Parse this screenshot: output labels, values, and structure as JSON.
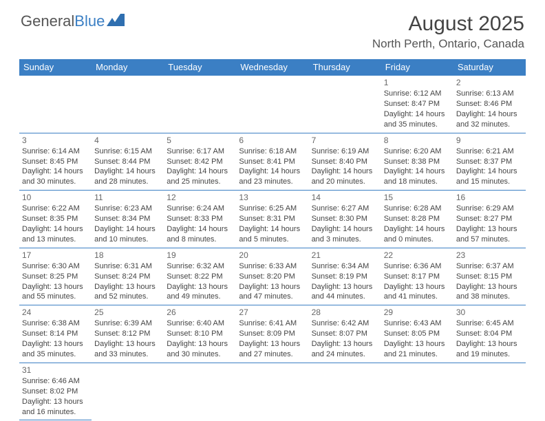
{
  "logo": {
    "text1": "General",
    "text2": "Blue"
  },
  "title": "August 2025",
  "location": "North Perth, Ontario, Canada",
  "dayHeaders": [
    "Sunday",
    "Monday",
    "Tuesday",
    "Wednesday",
    "Thursday",
    "Friday",
    "Saturday"
  ],
  "colors": {
    "header_bg": "#3b7fc4",
    "border": "#3b7fc4",
    "text": "#444444"
  },
  "startOffset": 5,
  "days": [
    {
      "n": "1",
      "sr": "6:12 AM",
      "ss": "8:47 PM",
      "dl": "14 hours and 35 minutes."
    },
    {
      "n": "2",
      "sr": "6:13 AM",
      "ss": "8:46 PM",
      "dl": "14 hours and 32 minutes."
    },
    {
      "n": "3",
      "sr": "6:14 AM",
      "ss": "8:45 PM",
      "dl": "14 hours and 30 minutes."
    },
    {
      "n": "4",
      "sr": "6:15 AM",
      "ss": "8:44 PM",
      "dl": "14 hours and 28 minutes."
    },
    {
      "n": "5",
      "sr": "6:17 AM",
      "ss": "8:42 PM",
      "dl": "14 hours and 25 minutes."
    },
    {
      "n": "6",
      "sr": "6:18 AM",
      "ss": "8:41 PM",
      "dl": "14 hours and 23 minutes."
    },
    {
      "n": "7",
      "sr": "6:19 AM",
      "ss": "8:40 PM",
      "dl": "14 hours and 20 minutes."
    },
    {
      "n": "8",
      "sr": "6:20 AM",
      "ss": "8:38 PM",
      "dl": "14 hours and 18 minutes."
    },
    {
      "n": "9",
      "sr": "6:21 AM",
      "ss": "8:37 PM",
      "dl": "14 hours and 15 minutes."
    },
    {
      "n": "10",
      "sr": "6:22 AM",
      "ss": "8:35 PM",
      "dl": "14 hours and 13 minutes."
    },
    {
      "n": "11",
      "sr": "6:23 AM",
      "ss": "8:34 PM",
      "dl": "14 hours and 10 minutes."
    },
    {
      "n": "12",
      "sr": "6:24 AM",
      "ss": "8:33 PM",
      "dl": "14 hours and 8 minutes."
    },
    {
      "n": "13",
      "sr": "6:25 AM",
      "ss": "8:31 PM",
      "dl": "14 hours and 5 minutes."
    },
    {
      "n": "14",
      "sr": "6:27 AM",
      "ss": "8:30 PM",
      "dl": "14 hours and 3 minutes."
    },
    {
      "n": "15",
      "sr": "6:28 AM",
      "ss": "8:28 PM",
      "dl": "14 hours and 0 minutes."
    },
    {
      "n": "16",
      "sr": "6:29 AM",
      "ss": "8:27 PM",
      "dl": "13 hours and 57 minutes."
    },
    {
      "n": "17",
      "sr": "6:30 AM",
      "ss": "8:25 PM",
      "dl": "13 hours and 55 minutes."
    },
    {
      "n": "18",
      "sr": "6:31 AM",
      "ss": "8:24 PM",
      "dl": "13 hours and 52 minutes."
    },
    {
      "n": "19",
      "sr": "6:32 AM",
      "ss": "8:22 PM",
      "dl": "13 hours and 49 minutes."
    },
    {
      "n": "20",
      "sr": "6:33 AM",
      "ss": "8:20 PM",
      "dl": "13 hours and 47 minutes."
    },
    {
      "n": "21",
      "sr": "6:34 AM",
      "ss": "8:19 PM",
      "dl": "13 hours and 44 minutes."
    },
    {
      "n": "22",
      "sr": "6:36 AM",
      "ss": "8:17 PM",
      "dl": "13 hours and 41 minutes."
    },
    {
      "n": "23",
      "sr": "6:37 AM",
      "ss": "8:15 PM",
      "dl": "13 hours and 38 minutes."
    },
    {
      "n": "24",
      "sr": "6:38 AM",
      "ss": "8:14 PM",
      "dl": "13 hours and 35 minutes."
    },
    {
      "n": "25",
      "sr": "6:39 AM",
      "ss": "8:12 PM",
      "dl": "13 hours and 33 minutes."
    },
    {
      "n": "26",
      "sr": "6:40 AM",
      "ss": "8:10 PM",
      "dl": "13 hours and 30 minutes."
    },
    {
      "n": "27",
      "sr": "6:41 AM",
      "ss": "8:09 PM",
      "dl": "13 hours and 27 minutes."
    },
    {
      "n": "28",
      "sr": "6:42 AM",
      "ss": "8:07 PM",
      "dl": "13 hours and 24 minutes."
    },
    {
      "n": "29",
      "sr": "6:43 AM",
      "ss": "8:05 PM",
      "dl": "13 hours and 21 minutes."
    },
    {
      "n": "30",
      "sr": "6:45 AM",
      "ss": "8:04 PM",
      "dl": "13 hours and 19 minutes."
    },
    {
      "n": "31",
      "sr": "6:46 AM",
      "ss": "8:02 PM",
      "dl": "13 hours and 16 minutes."
    }
  ]
}
